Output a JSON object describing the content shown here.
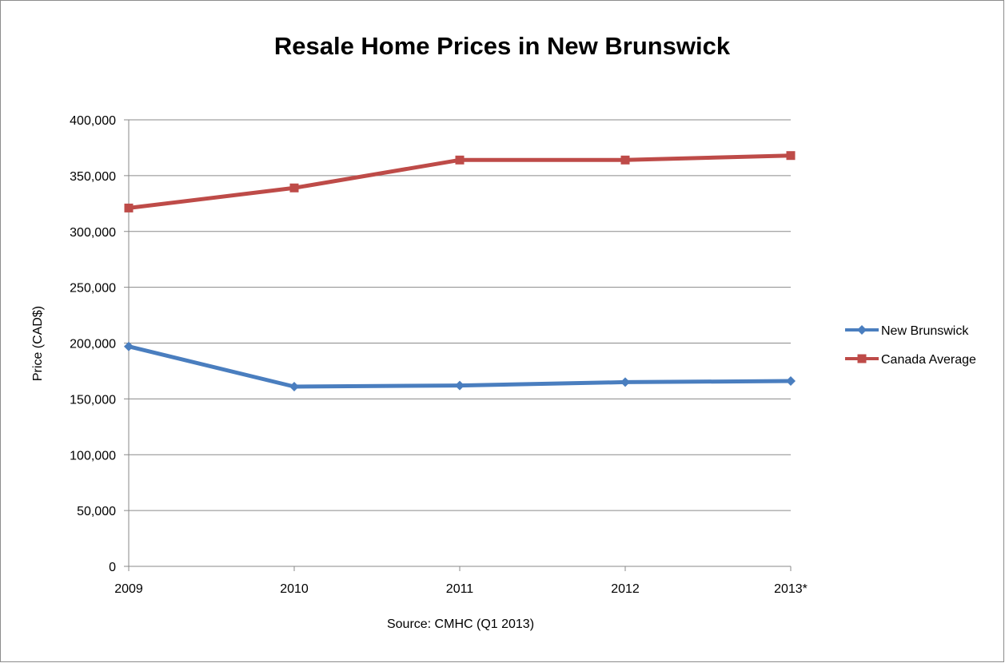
{
  "chart_data": {
    "type": "line",
    "title": "Resale Home Prices in New Brunswick",
    "xlabel": "Source: CMHC (Q1 2013)",
    "ylabel": "Price (CAD$)",
    "categories": [
      "2009",
      "2010",
      "2011",
      "2012",
      "2013*"
    ],
    "ylim": [
      0,
      400000
    ],
    "yticks": [
      0,
      50000,
      100000,
      150000,
      200000,
      250000,
      300000,
      350000,
      400000
    ],
    "ytick_labels": [
      "0",
      "50,000",
      "100,000",
      "150,000",
      "200,000",
      "250,000",
      "300,000",
      "350,000",
      "400,000"
    ],
    "grid": true,
    "legend_position": "right",
    "series": [
      {
        "name": "New Brunswick",
        "color": "#4a7ebf",
        "marker": "diamond",
        "values": [
          197000,
          161000,
          162000,
          165000,
          166000
        ]
      },
      {
        "name": "Canada Average",
        "color": "#be4b48",
        "marker": "square",
        "values": [
          321000,
          339000,
          364000,
          364000,
          368000
        ]
      }
    ]
  }
}
